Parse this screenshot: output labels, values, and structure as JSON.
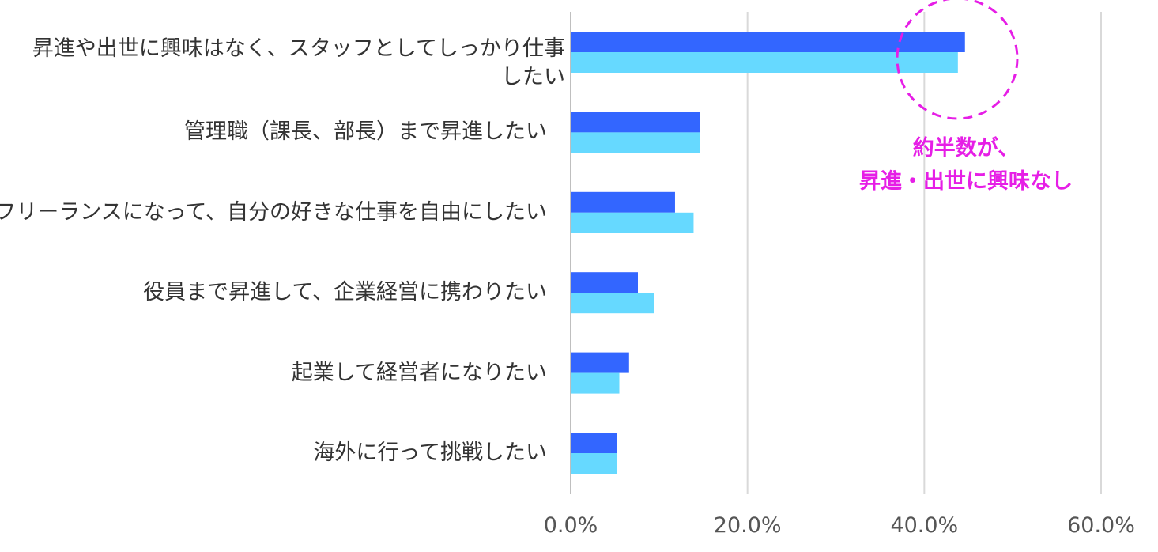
{
  "chart_data": {
    "type": "hbar",
    "categories": [
      "昇進や出世に興味はなく、スタッフとしてしっかり仕事したい",
      "管理職（課長、部長）まで昇進したい",
      "フリーランスになって、自分の好きな仕事を自由にしたい",
      "役員まで昇進して、企業経営に携わりたい",
      "起業して経営者になりたい",
      "海外に行って挑戦したい"
    ],
    "series": [
      {
        "color": "#3366ff",
        "values": [
          44.6,
          14.6,
          11.8,
          7.6,
          6.6,
          5.2
        ]
      },
      {
        "color": "#66d9ff",
        "values": [
          43.8,
          14.6,
          13.9,
          9.4,
          5.5,
          5.2
        ]
      }
    ],
    "xlim": [
      0,
      60
    ],
    "xticks": [
      {
        "value": 0,
        "label": "0.0%"
      },
      {
        "value": 20,
        "label": "20.0%"
      },
      {
        "value": 40,
        "label": "40.0%"
      },
      {
        "value": 60,
        "label": "60.0%"
      }
    ],
    "grid": true,
    "annotation": [
      "約半数が、",
      "昇進・出世に興味なし"
    ]
  }
}
